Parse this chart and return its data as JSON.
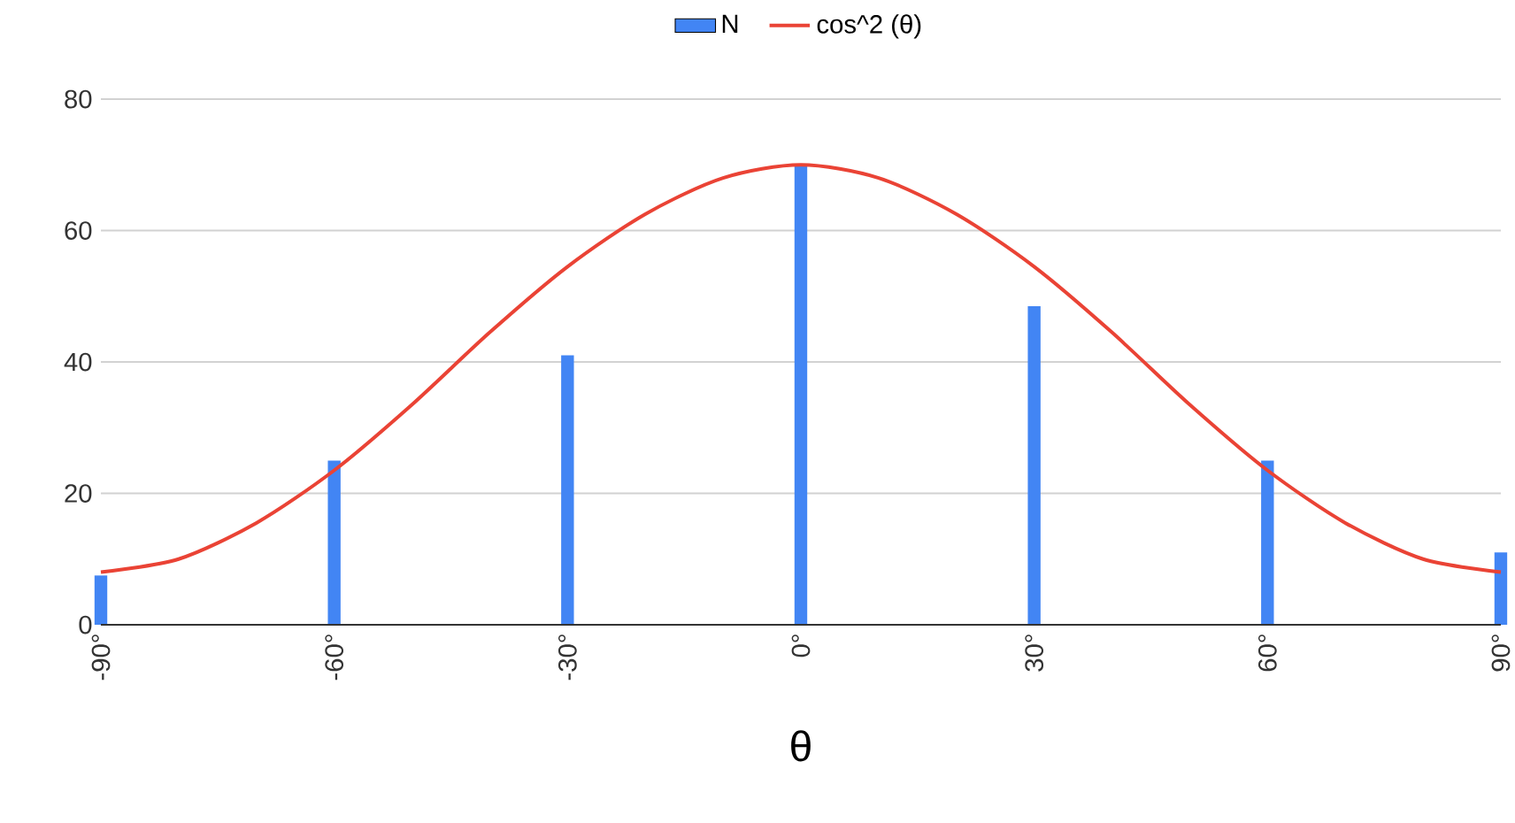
{
  "chart_data": {
    "type": "bar",
    "xlabel": "θ",
    "x": [
      -90,
      -60,
      -30,
      0,
      30,
      60,
      90
    ],
    "series": [
      {
        "name": "N",
        "color": "#4285f4",
        "values": [
          7.5,
          25,
          41,
          70,
          48.5,
          25,
          11
        ]
      },
      {
        "name": "cos^2 (θ)",
        "type": "line",
        "color": "#ea4335",
        "x": [
          -90,
          -80,
          -70,
          -60,
          -50,
          -40,
          -30,
          -20,
          -10,
          0,
          10,
          20,
          30,
          40,
          50,
          60,
          70,
          80,
          90
        ],
        "values": [
          8,
          10,
          15.5,
          23.5,
          33.5,
          44.5,
          54.5,
          62.5,
          68,
          70,
          68,
          62.5,
          54.5,
          44.5,
          33.5,
          23.5,
          15.5,
          10,
          8
        ]
      }
    ],
    "xlim": [
      -90,
      90
    ],
    "xticks": [
      {
        "value": -90,
        "label": "-90°"
      },
      {
        "value": -60,
        "label": "-60°"
      },
      {
        "value": -30,
        "label": "-30°"
      },
      {
        "value": 0,
        "label": "0°"
      },
      {
        "value": 30,
        "label": "30°"
      },
      {
        "value": 60,
        "label": "60°"
      },
      {
        "value": 90,
        "label": "90°"
      }
    ],
    "ylim": [
      0,
      80
    ],
    "yticks": [
      0,
      20,
      40,
      60,
      80
    ],
    "grid": "y",
    "legend": "top",
    "marker": "none",
    "line_style": "solid"
  }
}
